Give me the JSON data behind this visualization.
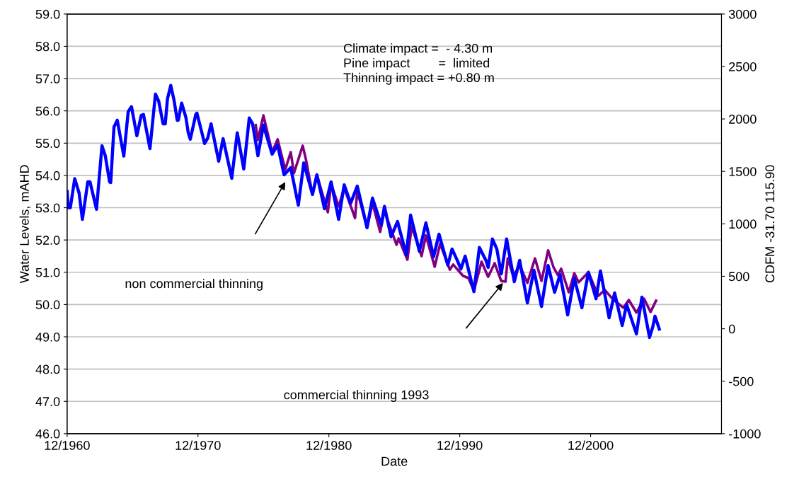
{
  "chart_data": {
    "type": "line",
    "xlabel": "Date",
    "ylabel": "Water Levels, mAHD",
    "y2label": "CDFM -31.70 115.90",
    "xlim": [
      "1960-12",
      "2010-12"
    ],
    "xticks": [
      {
        "value": "1960-12",
        "label": "12/1960"
      },
      {
        "value": "1970-12",
        "label": "12/1970"
      },
      {
        "value": "1980-12",
        "label": "12/1980"
      },
      {
        "value": "1990-12",
        "label": "12/1990"
      },
      {
        "value": "2000-12",
        "label": "12/2000"
      }
    ],
    "ylim": [
      46,
      59
    ],
    "yticks": [
      {
        "value": 46,
        "label": "46.0"
      },
      {
        "value": 47,
        "label": "47.0"
      },
      {
        "value": 48,
        "label": "48.0"
      },
      {
        "value": 49,
        "label": "49.0"
      },
      {
        "value": 50,
        "label": "50.0"
      },
      {
        "value": 51,
        "label": "51.0"
      },
      {
        "value": 52,
        "label": "52.0"
      },
      {
        "value": 53,
        "label": "53.0"
      },
      {
        "value": 54,
        "label": "54.0"
      },
      {
        "value": 55,
        "label": "55.0"
      },
      {
        "value": 56,
        "label": "56.0"
      },
      {
        "value": 57,
        "label": "57.0"
      },
      {
        "value": 58,
        "label": "58.0"
      },
      {
        "value": 59,
        "label": "59.0"
      }
    ],
    "y2lim": [
      -1000,
      3000
    ],
    "y2ticks": [
      -1000,
      -500,
      0,
      500,
      1000,
      1500,
      2000,
      2500,
      3000
    ],
    "grid": "y",
    "marker": "none",
    "line_style": "solid",
    "series": [
      {
        "color": "#0000ff",
        "x": [
          "1960-12",
          "1961-01",
          "1961-03",
          "1961-07",
          "1961-11",
          "1962-02",
          "1962-07",
          "1962-09",
          "1963-03",
          "1963-08",
          "1963-11",
          "1964-03",
          "1964-04",
          "1964-07",
          "1964-10",
          "1965-04",
          "1965-08",
          "1965-11",
          "1966-04",
          "1966-08",
          "1966-10",
          "1967-04",
          "1967-09",
          "1967-12",
          "1968-04",
          "1968-06",
          "1968-08",
          "1968-11",
          "1969-02",
          "1969-05",
          "1969-06",
          "1969-09",
          "1970-01",
          "1970-03",
          "1970-05",
          "1970-10",
          "1970-11",
          "1971-04",
          "1971-06",
          "1971-09",
          "1971-12",
          "1972-07",
          "1972-11",
          "1973-07",
          "1973-12",
          "1974-06",
          "1974-11",
          "1975-02",
          "1975-07",
          "1975-12",
          "1976-08",
          "1977-01",
          "1977-07",
          "1978-01",
          "1978-08",
          "1979-01",
          "1979-09",
          "1980-01",
          "1980-08",
          "1981-02",
          "1981-09",
          "1982-02",
          "1982-08",
          "1983-02",
          "1983-11",
          "1984-04",
          "1984-12",
          "1985-03",
          "1985-09",
          "1986-03",
          "1986-11",
          "1987-03",
          "1987-11",
          "1988-05",
          "1988-12",
          "1989-05",
          "1990-01",
          "1990-05",
          "1990-10",
          "1991-01",
          "1991-05",
          "1992-01",
          "1992-06",
          "1992-12",
          "1993-02",
          "1993-06",
          "1993-10",
          "1994-02",
          "1994-07",
          "1995-02",
          "1995-07",
          "1996-02",
          "1996-08",
          "1997-03",
          "1997-09",
          "1998-03",
          "1998-08",
          "1999-03",
          "1999-09",
          "2000-04",
          "2000-10",
          "2001-05",
          "2001-09",
          "2002-05",
          "2002-10",
          "2003-05",
          "2003-09",
          "2004-06",
          "2004-11",
          "2005-06",
          "2005-09",
          "2005-11",
          "2006-03"
        ],
        "values": [
          53.5,
          53.0,
          53.0,
          53.9,
          53.45,
          52.64,
          53.8,
          53.8,
          52.95,
          54.92,
          54.61,
          53.8,
          53.78,
          55.5,
          55.71,
          54.6,
          55.97,
          56.13,
          55.23,
          55.86,
          55.89,
          54.83,
          56.52,
          56.3,
          55.6,
          55.6,
          56.37,
          56.79,
          56.33,
          55.71,
          55.71,
          56.24,
          55.78,
          55.34,
          55.12,
          55.89,
          55.93,
          55.27,
          54.99,
          55.16,
          55.6,
          54.44,
          55.14,
          53.91,
          55.32,
          54.2,
          55.78,
          55.6,
          54.61,
          55.56,
          54.66,
          54.94,
          54.02,
          54.24,
          53.08,
          54.39,
          53.41,
          54.02,
          52.97,
          53.8,
          52.64,
          53.71,
          53.14,
          53.67,
          52.38,
          53.3,
          52.46,
          53.04,
          52.1,
          52.57,
          51.54,
          52.77,
          51.65,
          52.53,
          51.48,
          52.18,
          51.22,
          51.72,
          51.35,
          51.1,
          51.5,
          50.4,
          51.77,
          51.37,
          51.15,
          52.03,
          51.72,
          50.95,
          52.03,
          50.71,
          51.37,
          50.05,
          51.06,
          49.94,
          51.21,
          50.38,
          50.93,
          49.68,
          50.82,
          49.9,
          51.0,
          50.18,
          51.04,
          49.59,
          50.36,
          49.35,
          50.0,
          49.09,
          50.23,
          48.98,
          49.31,
          49.64,
          49.24
        ]
      },
      {
        "color": "#800080",
        "x": [
          "1975-05",
          "1975-07",
          "1975-12",
          "1976-08",
          "1977-01",
          "1977-08",
          "1978-01",
          "1978-04",
          "1978-12",
          "1979-03",
          "1979-09",
          "1980-01",
          "1980-11",
          "1981-02",
          "1981-09",
          "1982-02",
          "1982-12",
          "1983-02",
          "1983-11",
          "1984-04",
          "1984-11",
          "1985-03",
          "1986-02",
          "1986-04",
          "1986-12",
          "1987-04",
          "1988-01",
          "1988-05",
          "1989-01",
          "1989-06",
          "1990-03",
          "1990-06",
          "1991-03",
          "1991-08",
          "1992-01",
          "1992-08",
          "1993-02",
          "1993-08",
          "1994-02",
          "1994-06",
          "1994-08",
          "1995-01",
          "1995-07",
          "1996-02",
          "1996-09",
          "1997-03",
          "1997-09",
          "1998-02",
          "1998-06",
          "1998-09",
          "1999-04",
          "1999-09",
          "2000-01",
          "2000-10",
          "2001-07",
          "2002-01",
          "2002-08",
          "2003-06",
          "2003-11",
          "2004-06",
          "2005-01",
          "2005-07",
          "2005-12"
        ],
        "values": [
          55.56,
          55.1,
          55.86,
          54.72,
          55.12,
          54.18,
          54.72,
          54.07,
          54.92,
          54.5,
          53.41,
          54.02,
          52.86,
          53.74,
          53.04,
          53.61,
          52.68,
          53.52,
          52.38,
          53.14,
          52.25,
          52.9,
          51.85,
          52.05,
          51.39,
          52.42,
          51.5,
          52.14,
          51.17,
          51.88,
          51.08,
          51.24,
          50.89,
          50.82,
          50.43,
          51.33,
          50.86,
          51.28,
          50.73,
          50.71,
          51.43,
          50.89,
          51.21,
          50.67,
          51.43,
          50.73,
          51.68,
          51.15,
          50.91,
          51.11,
          50.38,
          50.97,
          50.69,
          51.0,
          50.27,
          50.45,
          50.18,
          49.9,
          50.14,
          49.75,
          50.18,
          49.77,
          50.12
        ]
      }
    ],
    "annotations": [
      "Climate impact =  - 4.30 m\nPine impact        =  limited\nThinning impact = +0.80 m",
      "non commercial thinning",
      "commercial thinning 1993"
    ]
  }
}
